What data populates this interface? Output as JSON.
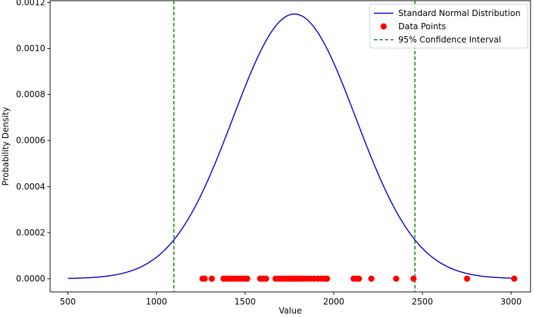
{
  "chart_data": {
    "type": "line",
    "title": "",
    "xlabel": "Value",
    "ylabel": "Probability Density",
    "xlim": [
      400,
      3110
    ],
    "ylim": [
      -5.75e-05,
      0.0012075
    ],
    "x_ticks": [
      500,
      1000,
      1500,
      2000,
      2500,
      3000
    ],
    "x_tick_labels": [
      "500",
      "1000",
      "1500",
      "2000",
      "2500",
      "3000"
    ],
    "y_ticks": [
      0,
      0.0002,
      0.0004,
      0.0006,
      0.0008,
      0.001,
      0.0012
    ],
    "y_tick_labels": [
      "0.0000",
      "0.0002",
      "0.0004",
      "0.0006",
      "0.0008",
      "0.0010",
      "0.0012"
    ],
    "grid": false,
    "legend_position": "top-right",
    "series": [
      {
        "name": "Standard Normal Distribution",
        "kind": "curve",
        "color": "#0000cc",
        "mean": 1778,
        "std": 347,
        "x_range": [
          500,
          3020
        ]
      },
      {
        "name": "Data Points",
        "kind": "scatter",
        "color": "#ff0000",
        "x": [
          1260,
          1272,
          1312,
          1378,
          1392,
          1408,
          1425,
          1445,
          1462,
          1478,
          1495,
          1512,
          1585,
          1600,
          1618,
          1672,
          1690,
          1705,
          1722,
          1740,
          1752,
          1765,
          1778,
          1790,
          1802,
          1815,
          1832,
          1852,
          1872,
          1890,
          1912,
          1930,
          1948,
          1962,
          2112,
          2128,
          2142,
          2212,
          2352,
          2450,
          2752,
          3018
        ],
        "y": [
          0,
          0,
          0,
          0,
          0,
          0,
          0,
          0,
          0,
          0,
          0,
          0,
          0,
          0,
          0,
          0,
          0,
          0,
          0,
          0,
          0,
          0,
          0,
          0,
          0,
          0,
          0,
          0,
          0,
          0,
          0,
          0,
          0,
          0,
          0,
          0,
          0,
          0,
          0,
          0,
          0,
          0
        ]
      },
      {
        "name": "95% Confidence Interval",
        "kind": "vline",
        "color": "#008000",
        "x": [
          1098,
          2458
        ]
      }
    ]
  }
}
